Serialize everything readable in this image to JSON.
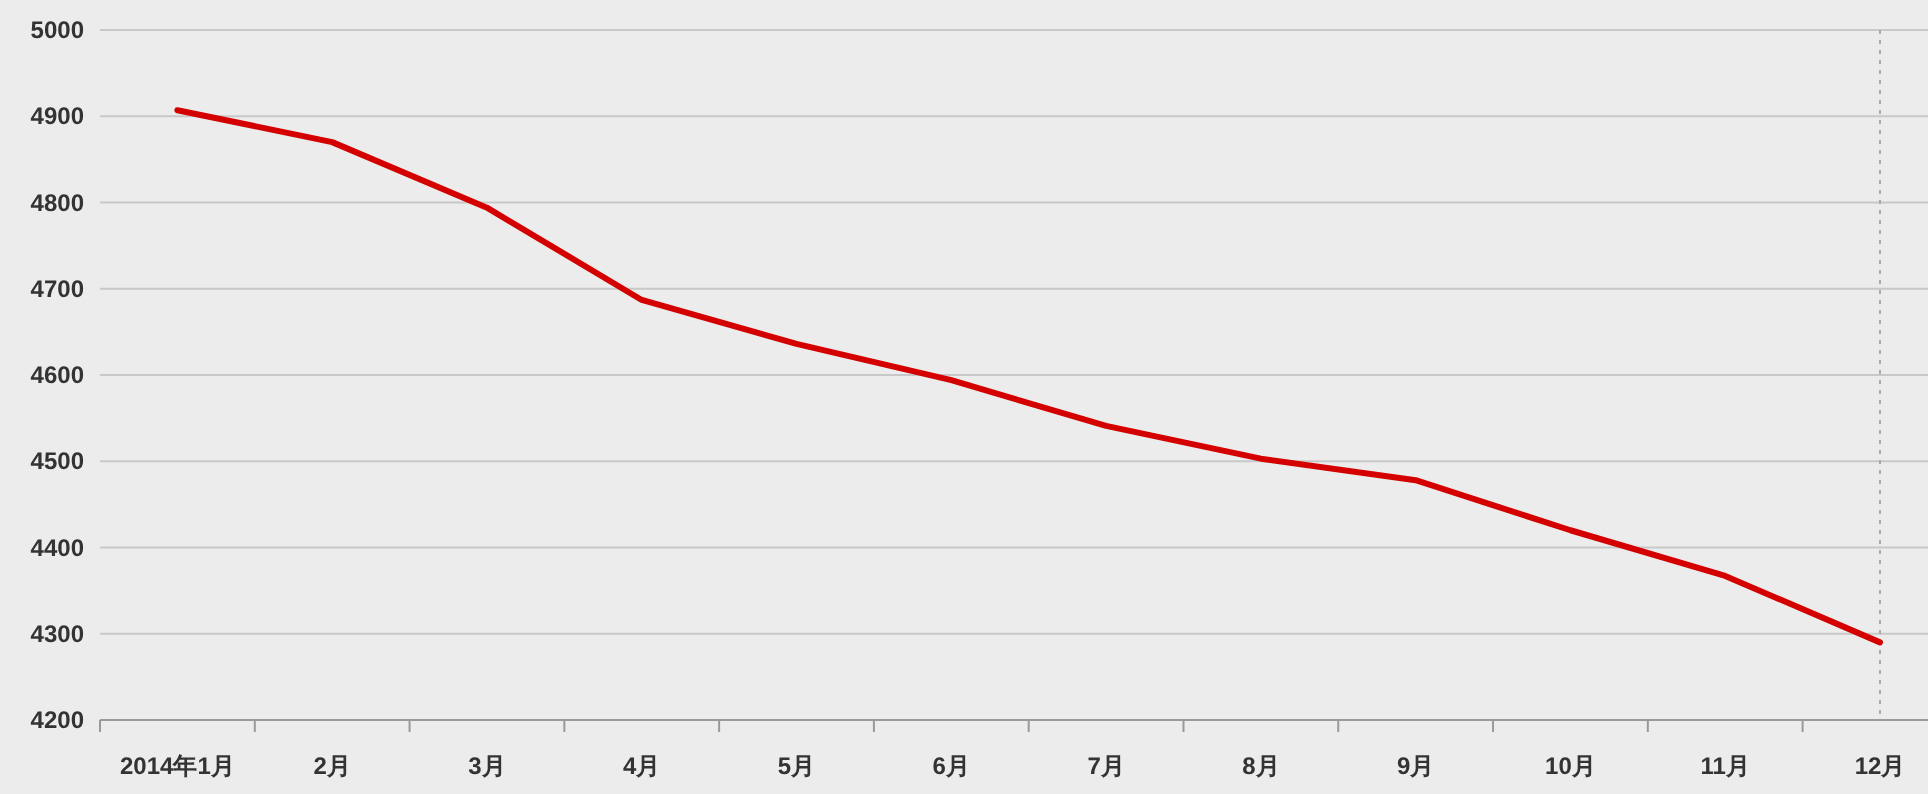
{
  "chart_data": {
    "type": "line",
    "categories": [
      "2014年1月",
      "2月",
      "3月",
      "4月",
      "5月",
      "6月",
      "7月",
      "8月",
      "9月",
      "10月",
      "11月",
      "12月"
    ],
    "series": [
      {
        "color": "#d40000",
        "values": [
          4907,
          4870,
          4794,
          4687,
          4636,
          4594,
          4541,
          4503,
          4478,
          4420,
          4367,
          4290
        ]
      }
    ],
    "ylim": [
      4200,
      5000
    ],
    "yticks": [
      4200,
      4300,
      4400,
      4500,
      4600,
      4700,
      4800,
      4900,
      5000
    ],
    "grid": "y",
    "marker": "none",
    "line_style": "solid",
    "ref_lines": [
      {
        "axis": "x",
        "value": "12月",
        "color": "#aaaaaa",
        "line_style": "dotted"
      }
    ]
  }
}
